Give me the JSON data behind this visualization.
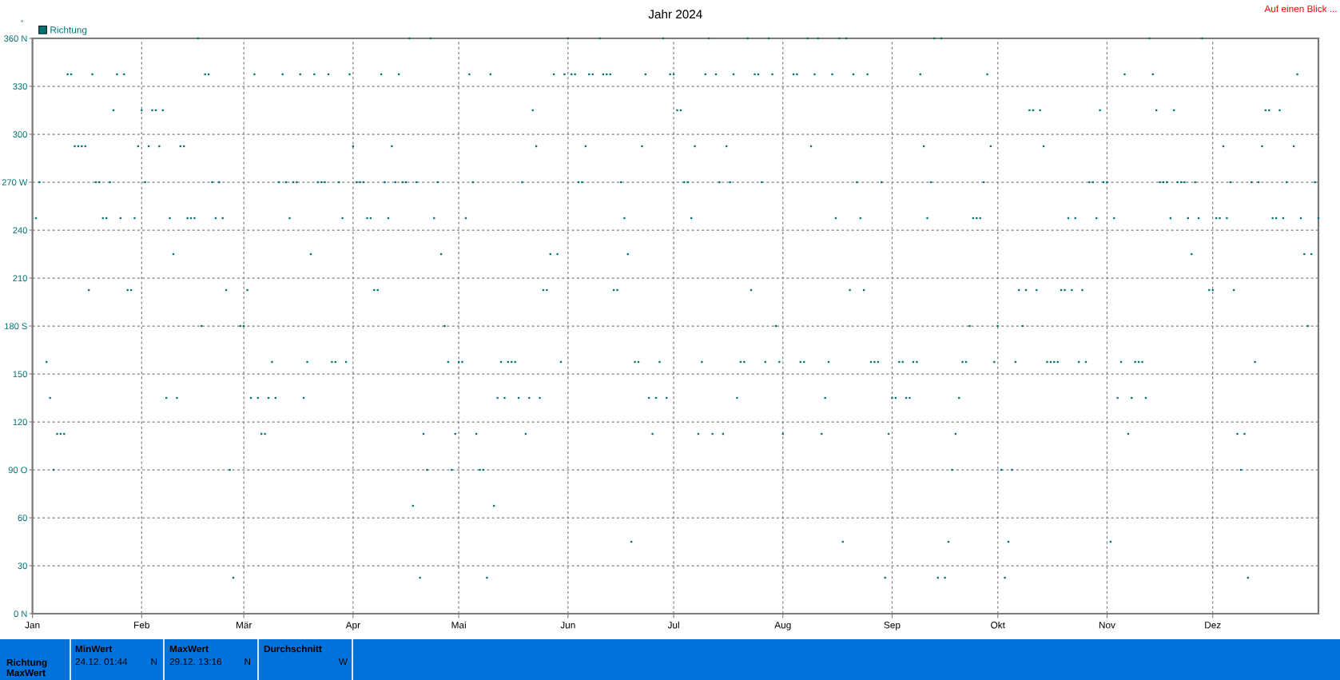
{
  "chart_data": [
    {
      "type": "scatter",
      "title": "Jahr 2024",
      "ylabel": "°",
      "annotations": [
        "Auf einen Blick ..."
      ],
      "x": [
        "2024-01-02",
        "2024-01-03",
        "2024-01-05",
        "2024-01-06",
        "2024-01-07",
        "2024-01-08",
        "2024-01-09",
        "2024-01-10",
        "2024-01-11",
        "2024-01-12",
        "2024-01-13",
        "2024-01-14",
        "2024-01-15",
        "2024-01-16",
        "2024-01-17",
        "2024-01-18",
        "2024-01-19",
        "2024-01-20",
        "2024-01-21",
        "2024-01-22",
        "2024-01-23",
        "2024-01-24",
        "2024-01-25",
        "2024-01-26",
        "2024-01-27",
        "2024-01-28",
        "2024-01-29",
        "2024-01-30",
        "2024-01-31",
        "2024-02-01",
        "2024-02-02",
        "2024-02-03",
        "2024-02-04",
        "2024-02-05",
        "2024-02-06",
        "2024-02-07",
        "2024-02-08",
        "2024-02-09",
        "2024-02-10",
        "2024-02-11",
        "2024-02-12",
        "2024-02-13",
        "2024-02-14",
        "2024-02-15",
        "2024-02-16",
        "2024-02-17",
        "2024-02-18",
        "2024-02-19",
        "2024-02-20",
        "2024-02-21",
        "2024-02-22",
        "2024-02-23",
        "2024-02-24",
        "2024-02-25",
        "2024-02-26",
        "2024-02-27",
        "2024-02-29",
        "2024-03-01",
        "2024-03-02",
        "2024-03-03",
        "2024-03-04",
        "2024-03-05",
        "2024-03-06",
        "2024-03-07",
        "2024-03-08",
        "2024-03-09",
        "2024-03-10",
        "2024-03-11",
        "2024-03-12",
        "2024-03-13",
        "2024-03-14",
        "2024-03-15",
        "2024-03-16",
        "2024-03-17",
        "2024-03-18",
        "2024-03-19",
        "2024-03-20",
        "2024-03-21",
        "2024-03-22",
        "2024-03-23",
        "2024-03-24",
        "2024-03-25",
        "2024-03-26",
        "2024-03-27",
        "2024-03-28",
        "2024-03-29",
        "2024-03-30",
        "2024-03-31",
        "2024-04-01",
        "2024-04-02",
        "2024-04-03",
        "2024-04-04",
        "2024-04-05",
        "2024-04-06",
        "2024-04-07",
        "2024-04-08",
        "2024-04-09",
        "2024-04-10",
        "2024-04-11",
        "2024-04-12",
        "2024-04-13",
        "2024-04-14",
        "2024-04-15",
        "2024-04-16",
        "2024-04-17",
        "2024-04-18",
        "2024-04-19",
        "2024-04-20",
        "2024-04-21",
        "2024-04-22",
        "2024-04-23",
        "2024-04-24",
        "2024-04-25",
        "2024-04-26",
        "2024-04-27",
        "2024-04-28",
        "2024-04-29",
        "2024-04-30",
        "2024-05-01",
        "2024-05-02",
        "2024-05-03",
        "2024-05-04",
        "2024-05-05",
        "2024-05-06",
        "2024-05-07",
        "2024-05-08",
        "2024-05-09",
        "2024-05-10",
        "2024-05-11",
        "2024-05-12",
        "2024-05-13",
        "2024-05-14",
        "2024-05-15",
        "2024-05-16",
        "2024-05-17",
        "2024-05-18",
        "2024-05-19",
        "2024-05-20",
        "2024-05-21",
        "2024-05-22",
        "2024-05-23",
        "2024-05-24",
        "2024-05-25",
        "2024-05-26",
        "2024-05-27",
        "2024-05-28",
        "2024-05-29",
        "2024-05-30",
        "2024-05-31",
        "2024-06-01",
        "2024-06-02",
        "2024-06-03",
        "2024-06-04",
        "2024-06-05",
        "2024-06-06",
        "2024-06-07",
        "2024-06-08",
        "2024-06-10",
        "2024-06-11",
        "2024-06-12",
        "2024-06-13",
        "2024-06-14",
        "2024-06-15",
        "2024-06-16",
        "2024-06-17",
        "2024-06-18",
        "2024-06-19",
        "2024-06-20",
        "2024-06-21",
        "2024-06-22",
        "2024-06-23",
        "2024-06-24",
        "2024-06-25",
        "2024-06-26",
        "2024-06-27",
        "2024-06-28",
        "2024-06-29",
        "2024-06-30",
        "2024-07-01",
        "2024-07-02",
        "2024-07-03",
        "2024-07-04",
        "2024-07-05",
        "2024-07-06",
        "2024-07-07",
        "2024-07-08",
        "2024-07-09",
        "2024-07-10",
        "2024-07-11",
        "2024-07-12",
        "2024-07-13",
        "2024-07-14",
        "2024-07-15",
        "2024-07-16",
        "2024-07-17",
        "2024-07-18",
        "2024-07-19",
        "2024-07-20",
        "2024-07-21",
        "2024-07-22",
        "2024-07-23",
        "2024-07-24",
        "2024-07-25",
        "2024-07-26",
        "2024-07-27",
        "2024-07-28",
        "2024-07-29",
        "2024-07-30",
        "2024-07-31",
        "2024-08-01",
        "2024-08-04",
        "2024-08-05",
        "2024-08-06",
        "2024-08-07",
        "2024-08-08",
        "2024-08-09",
        "2024-08-10",
        "2024-08-11",
        "2024-08-12",
        "2024-08-13",
        "2024-08-14",
        "2024-08-15",
        "2024-08-16",
        "2024-08-17",
        "2024-08-18",
        "2024-08-19",
        "2024-08-20",
        "2024-08-21",
        "2024-08-22",
        "2024-08-23",
        "2024-08-24",
        "2024-08-25",
        "2024-08-26",
        "2024-08-27",
        "2024-08-28",
        "2024-08-29",
        "2024-08-30",
        "2024-08-31",
        "2024-09-01",
        "2024-09-02",
        "2024-09-03",
        "2024-09-04",
        "2024-09-05",
        "2024-09-06",
        "2024-09-07",
        "2024-09-08",
        "2024-09-09",
        "2024-09-10",
        "2024-09-11",
        "2024-09-12",
        "2024-09-13",
        "2024-09-14",
        "2024-09-15",
        "2024-09-16",
        "2024-09-17",
        "2024-09-18",
        "2024-09-19",
        "2024-09-20",
        "2024-09-21",
        "2024-09-22",
        "2024-09-23",
        "2024-09-24",
        "2024-09-25",
        "2024-09-26",
        "2024-09-27",
        "2024-09-28",
        "2024-09-29",
        "2024-09-30",
        "2024-10-01",
        "2024-10-02",
        "2024-10-03",
        "2024-10-04",
        "2024-10-05",
        "2024-10-06",
        "2024-10-07",
        "2024-10-08",
        "2024-10-09",
        "2024-10-10",
        "2024-10-11",
        "2024-10-12",
        "2024-10-13",
        "2024-10-14",
        "2024-10-15",
        "2024-10-16",
        "2024-10-17",
        "2024-10-18",
        "2024-10-19",
        "2024-10-20",
        "2024-10-21",
        "2024-10-22",
        "2024-10-23",
        "2024-10-24",
        "2024-10-25",
        "2024-10-26",
        "2024-10-27",
        "2024-10-28",
        "2024-10-29",
        "2024-10-30",
        "2024-10-31",
        "2024-11-01",
        "2024-11-02",
        "2024-11-03",
        "2024-11-04",
        "2024-11-05",
        "2024-11-06",
        "2024-11-07",
        "2024-11-08",
        "2024-11-09",
        "2024-11-10",
        "2024-11-11",
        "2024-11-12",
        "2024-11-13",
        "2024-11-14",
        "2024-11-15",
        "2024-11-16",
        "2024-11-17",
        "2024-11-18",
        "2024-11-19",
        "2024-11-20",
        "2024-11-21",
        "2024-11-22",
        "2024-11-23",
        "2024-11-24",
        "2024-11-25",
        "2024-11-26",
        "2024-11-27",
        "2024-11-28",
        "2024-11-30",
        "2024-12-01",
        "2024-12-02",
        "2024-12-03",
        "2024-12-04",
        "2024-12-05",
        "2024-12-06",
        "2024-12-07",
        "2024-12-08",
        "2024-12-09",
        "2024-12-10",
        "2024-12-11",
        "2024-12-12",
        "2024-12-13",
        "2024-12-14",
        "2024-12-15",
        "2024-12-16",
        "2024-12-17",
        "2024-12-18",
        "2024-12-19",
        "2024-12-20",
        "2024-12-21",
        "2024-12-22",
        "2024-12-24",
        "2024-12-25",
        "2024-12-26",
        "2024-12-27",
        "2024-12-28",
        "2024-12-29",
        "2024-12-30",
        "2024-12-31"
      ],
      "series": [
        {
          "name": "Richtung",
          "color": "#007373",
          "values": [
            247.5,
            270,
            157.5,
            135,
            90,
            112.5,
            112.5,
            112.5,
            337.5,
            337.5,
            292.5,
            292.5,
            292.5,
            292.5,
            202.5,
            337.5,
            270,
            270,
            247.5,
            247.5,
            270,
            315,
            337.5,
            247.5,
            337.5,
            202.5,
            202.5,
            247.5,
            292.5,
            315,
            270,
            292.5,
            315,
            315,
            292.5,
            315,
            135,
            247.5,
            225,
            135,
            292.5,
            292.5,
            247.5,
            247.5,
            247.5,
            360,
            180,
            337.5,
            337.5,
            270,
            247.5,
            270,
            247.5,
            202.5,
            90,
            22.5,
            180,
            180,
            202.5,
            135,
            337.5,
            135,
            112.5,
            112.5,
            135,
            157.5,
            135,
            270,
            337.5,
            270,
            247.5,
            270,
            270,
            337.5,
            135,
            157.5,
            225,
            337.5,
            270,
            270,
            270,
            337.5,
            157.5,
            157.5,
            270,
            247.5,
            157.5,
            337.5,
            292.5,
            270,
            270,
            270,
            247.5,
            247.5,
            202.5,
            202.5,
            337.5,
            270,
            247.5,
            292.5,
            270,
            337.5,
            270,
            270,
            360,
            67.5,
            270,
            22.5,
            112.5,
            90,
            360,
            247.5,
            270,
            225,
            180,
            157.5,
            90,
            112.5,
            157.5,
            157.5,
            247.5,
            337.5,
            270,
            112.5,
            90,
            90,
            22.5,
            337.5,
            67.5,
            135,
            157.5,
            135,
            157.5,
            157.5,
            157.5,
            135,
            270,
            112.5,
            135,
            315,
            292.5,
            135,
            202.5,
            202.5,
            225,
            337.5,
            225,
            157.5,
            337.5,
            360,
            337.5,
            337.5,
            270,
            270,
            292.5,
            337.5,
            337.5,
            360,
            337.5,
            337.5,
            337.5,
            202.5,
            202.5,
            270,
            247.5,
            225,
            45,
            157.5,
            157.5,
            292.5,
            337.5,
            135,
            112.5,
            135,
            157.5,
            360,
            135,
            337.5,
            337.5,
            315,
            315,
            270,
            270,
            247.5,
            292.5,
            112.5,
            157.5,
            337.5,
            360,
            112.5,
            337.5,
            270,
            112.5,
            292.5,
            270,
            337.5,
            135,
            157.5,
            157.5,
            360,
            202.5,
            337.5,
            337.5,
            270,
            157.5,
            360,
            337.5,
            180,
            157.5,
            112.5,
            337.5,
            337.5,
            157.5,
            157.5,
            360,
            292.5,
            337.5,
            360,
            112.5,
            135,
            157.5,
            337.5,
            247.5,
            360,
            45,
            360,
            202.5,
            337.5,
            270,
            247.5,
            202.5,
            337.5,
            157.5,
            157.5,
            157.5,
            270,
            22.5,
            112.5,
            135,
            135,
            157.5,
            157.5,
            135,
            135,
            157.5,
            157.5,
            337.5,
            292.5,
            247.5,
            270,
            360,
            22.5,
            360,
            22.5,
            45,
            90,
            112.5,
            135,
            157.5,
            157.5,
            180,
            247.5,
            247.5,
            247.5,
            270,
            337.5,
            292.5,
            157.5,
            180,
            90,
            22.5,
            45,
            90,
            157.5,
            202.5,
            180,
            202.5,
            315,
            315,
            202.5,
            315,
            292.5,
            157.5,
            157.5,
            157.5,
            157.5,
            202.5,
            202.5,
            247.5,
            202.5,
            247.5,
            157.5,
            202.5,
            157.5,
            270,
            270,
            247.5,
            315,
            270,
            270,
            45,
            247.5,
            135,
            157.5,
            337.5,
            112.5,
            135,
            157.5,
            157.5,
            157.5,
            135,
            360,
            337.5,
            315,
            270,
            270,
            270,
            247.5,
            315,
            270,
            270,
            270,
            247.5,
            225,
            270,
            247.5,
            360,
            202.5,
            202.5,
            247.5,
            247.5,
            292.5,
            247.5,
            270,
            202.5,
            112.5,
            90,
            112.5,
            22.5,
            270,
            157.5,
            270,
            292.5,
            315,
            315,
            247.5,
            247.5,
            315,
            247.5,
            270,
            292.5,
            337.5,
            247.5,
            225,
            180,
            225,
            270,
            247.5
          ]
        }
      ],
      "xlim": [
        "2024-01-01",
        "2024-12-31"
      ],
      "xticks": [
        {
          "value": "2024-01-01",
          "label": "Jan"
        },
        {
          "value": "2024-02-01",
          "label": "Feb"
        },
        {
          "value": "2024-03-01",
          "label": "Mär"
        },
        {
          "value": "2024-04-01",
          "label": "Apr"
        },
        {
          "value": "2024-05-01",
          "label": "Mai"
        },
        {
          "value": "2024-06-01",
          "label": "Jun"
        },
        {
          "value": "2024-07-01",
          "label": "Jul"
        },
        {
          "value": "2024-08-01",
          "label": "Aug"
        },
        {
          "value": "2024-09-01",
          "label": "Sep"
        },
        {
          "value": "2024-10-01",
          "label": "Okt"
        },
        {
          "value": "2024-11-01",
          "label": "Nov"
        },
        {
          "value": "2024-12-01",
          "label": "Dez"
        }
      ],
      "ylim": [
        0,
        360
      ],
      "yticks": [
        {
          "value": 0,
          "label": "0 N"
        },
        30,
        60,
        {
          "value": 90,
          "label": "90 O"
        },
        120,
        150,
        {
          "value": 180,
          "label": "180 S"
        },
        210,
        240,
        {
          "value": 270,
          "label": "270 W"
        },
        300,
        330,
        {
          "value": 360,
          "label": "360 N"
        }
      ],
      "grid": true,
      "legend": "top left",
      "marker": "square"
    },
    {
      "type": "other",
      "annotations": [
        "Richtung",
        "MaxWert",
        "MinWert",
        "24.12. 01:44",
        "N",
        "MaxWert",
        "29.12. 13:16",
        "N",
        "Durchschnitt",
        "W"
      ]
    }
  ]
}
